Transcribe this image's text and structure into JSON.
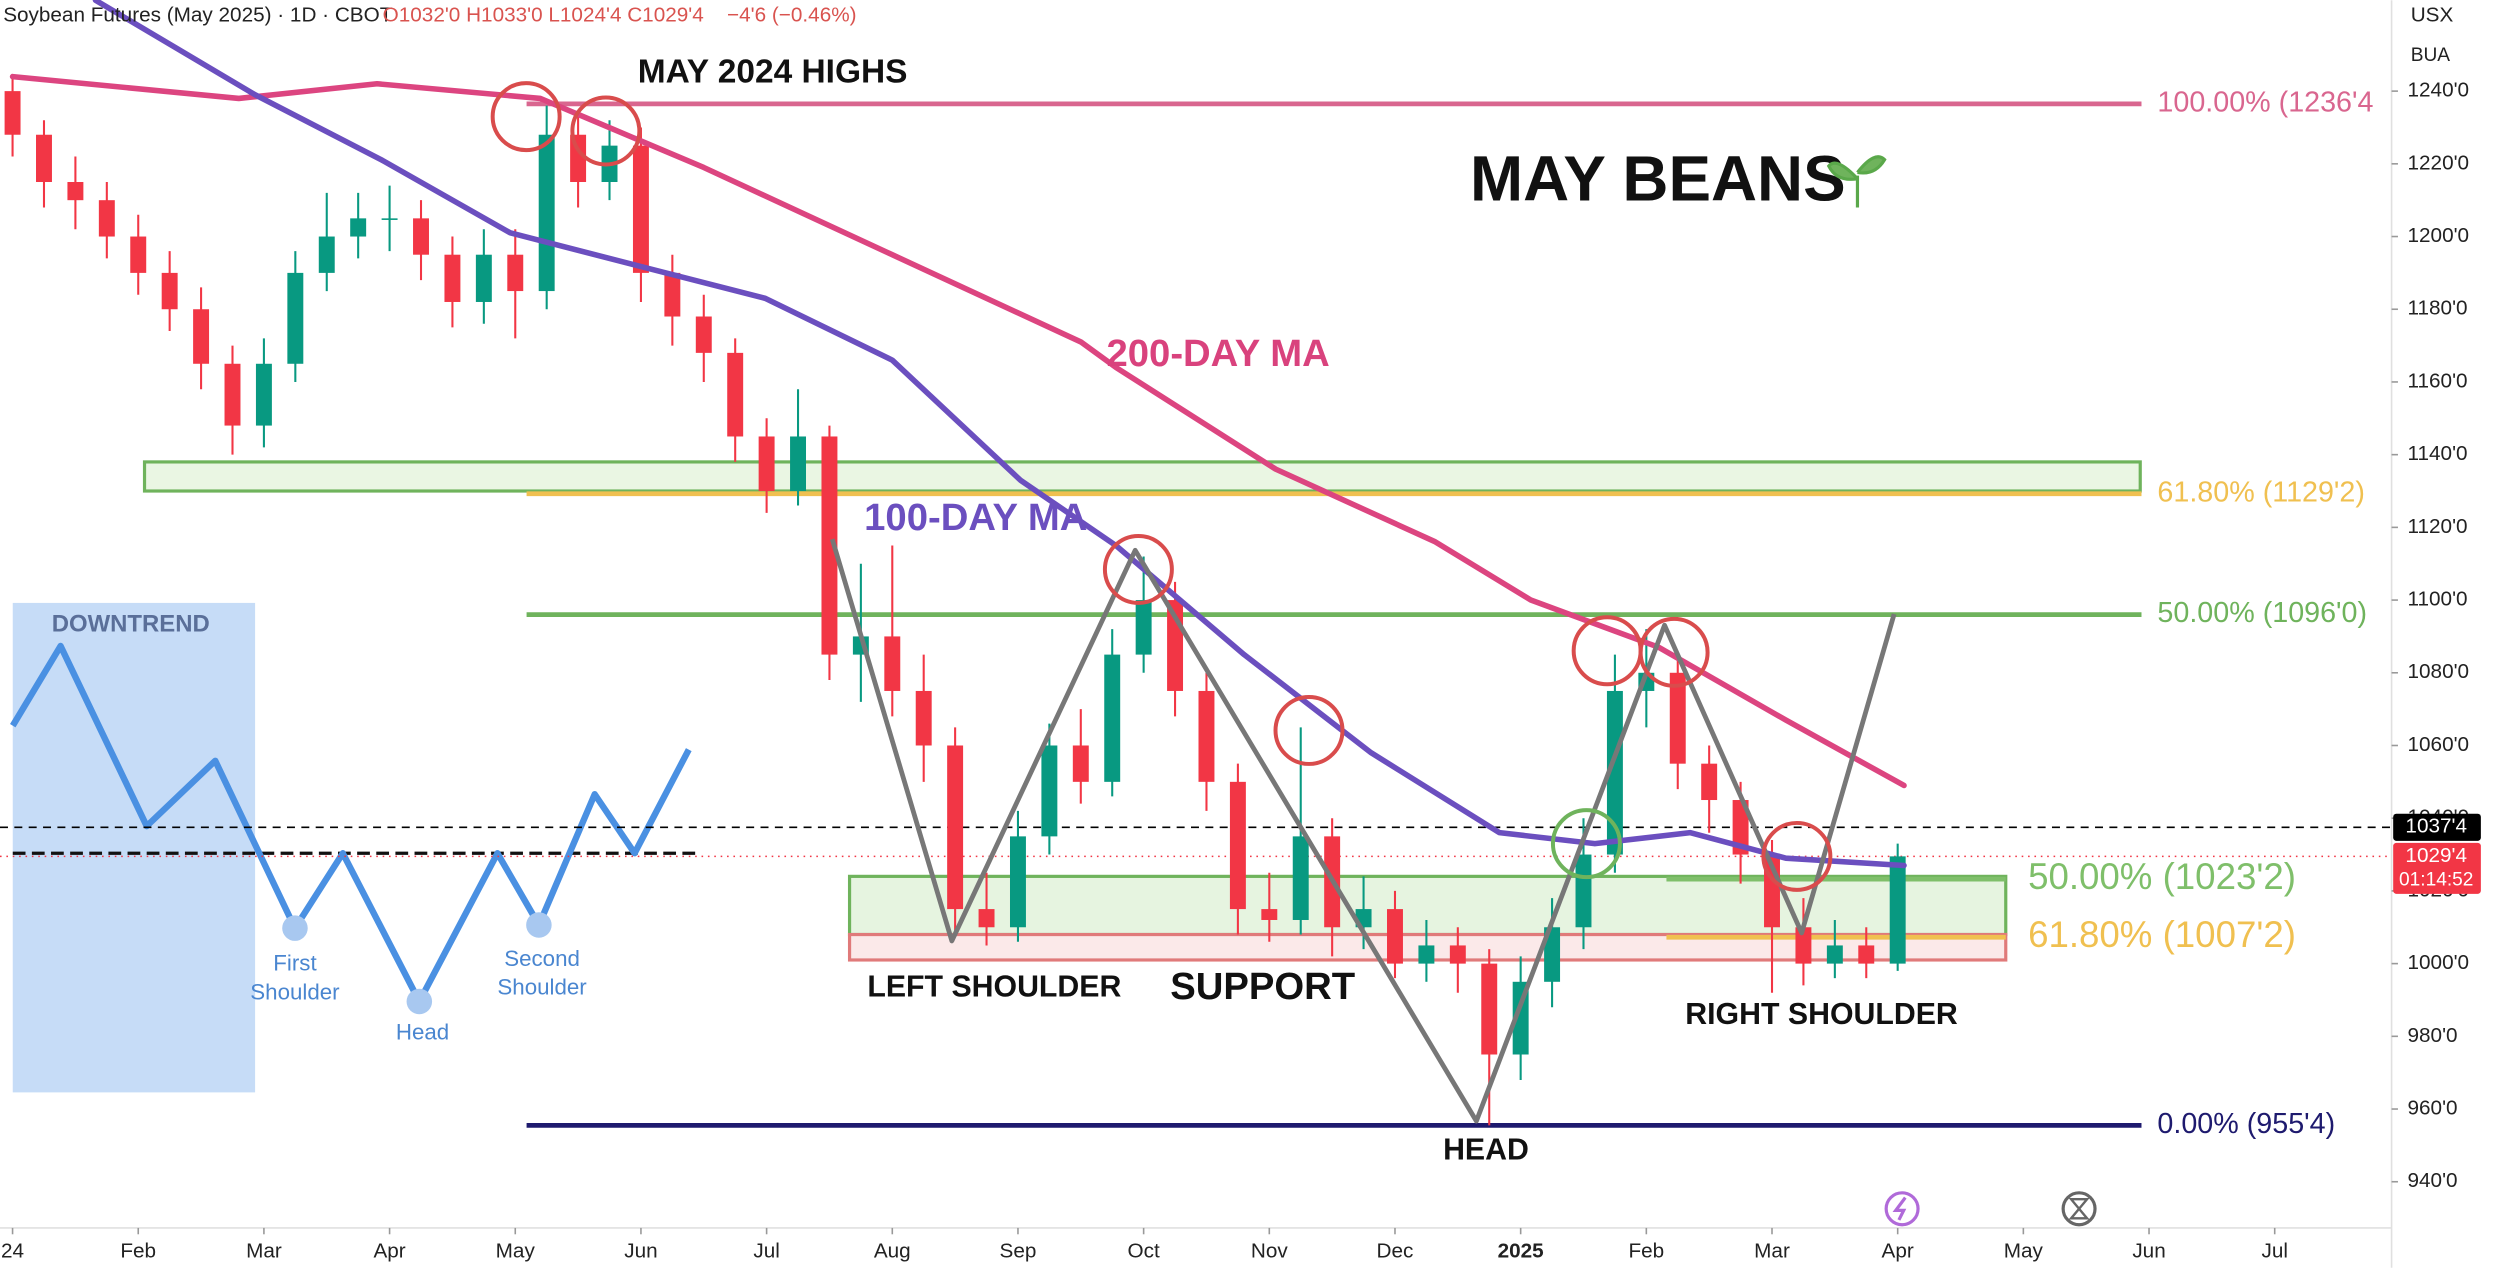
{
  "chart_data": {
    "type": "candlestick",
    "title": "Soybean Futures (May 2025) · 1D · CBOT",
    "ohlc_text": "O1032'0 H1033'0 L1024'4 C1029'4",
    "change_text": "−4'6 (−0.46%)",
    "currency": "USX",
    "exchange_code": "BUA",
    "candles": {
      "up_color": "#089981",
      "down_color": "#f23645",
      "x": [
        0,
        0.25,
        0.5,
        0.75,
        1,
        1.25,
        1.5,
        1.75,
        2,
        2.25,
        2.5,
        2.75,
        3,
        3.25,
        3.5,
        3.75,
        4,
        4.25,
        4.5,
        4.75,
        5,
        5.25,
        5.5,
        5.75,
        6,
        6.25,
        6.5,
        6.75,
        7,
        7.25,
        7.5,
        7.75,
        8,
        8.25,
        8.5,
        8.75,
        9,
        9.25,
        9.5,
        9.75,
        10,
        10.25,
        10.5,
        10.75,
        11,
        11.25,
        11.5,
        11.75,
        12,
        12.25,
        12.5,
        12.75,
        13,
        13.25,
        13.5,
        13.75,
        14,
        14.25,
        14.5,
        14.75,
        15
      ],
      "open": [
        1240,
        1228,
        1215,
        1210,
        1200,
        1190,
        1180,
        1165,
        1148,
        1165,
        1190,
        1200,
        1205,
        1205,
        1195,
        1182,
        1195,
        1185,
        1228,
        1215,
        1225,
        1190,
        1178,
        1168,
        1145,
        1130,
        1145,
        1085,
        1090,
        1075,
        1060,
        1015,
        1010,
        1035,
        1060,
        1050,
        1085,
        1100,
        1075,
        1050,
        1015,
        1012,
        1035,
        1010,
        1015,
        1000,
        1005,
        1000,
        975,
        995,
        1010,
        1030,
        1075,
        1080,
        1055,
        1045,
        1030,
        1010,
        1000,
        1005,
        1000
      ],
      "high": [
        1244,
        1232,
        1222,
        1215,
        1206,
        1196,
        1186,
        1170,
        1172,
        1196,
        1212,
        1212,
        1214,
        1210,
        1200,
        1202,
        1202,
        1236,
        1234,
        1232,
        1230,
        1195,
        1184,
        1172,
        1150,
        1158,
        1148,
        1110,
        1115,
        1085,
        1065,
        1025,
        1042,
        1066,
        1070,
        1092,
        1112,
        1105,
        1080,
        1055,
        1025,
        1065,
        1040,
        1024,
        1020,
        1012,
        1010,
        1004,
        1002,
        1018,
        1040,
        1085,
        1092,
        1085,
        1060,
        1050,
        1034,
        1018,
        1012,
        1010,
        1033
      ],
      "low": [
        1222,
        1208,
        1202,
        1194,
        1184,
        1174,
        1158,
        1140,
        1142,
        1160,
        1185,
        1194,
        1196,
        1188,
        1175,
        1176,
        1172,
        1180,
        1208,
        1210,
        1182,
        1170,
        1160,
        1138,
        1124,
        1126,
        1078,
        1072,
        1068,
        1050,
        1008,
        1005,
        1006,
        1030,
        1044,
        1046,
        1080,
        1068,
        1042,
        1008,
        1006,
        1008,
        1002,
        1004,
        996,
        995,
        992,
        955.5,
        968,
        988,
        1004,
        1025,
        1065,
        1048,
        1036,
        1022,
        992,
        994,
        996,
        996,
        998
      ],
      "close": [
        1228,
        1215,
        1210,
        1200,
        1190,
        1180,
        1165,
        1148,
        1165,
        1190,
        1200,
        1205,
        1205,
        1195,
        1182,
        1195,
        1185,
        1228,
        1215,
        1225,
        1190,
        1178,
        1168,
        1145,
        1130,
        1145,
        1085,
        1090,
        1075,
        1060,
        1015,
        1010,
        1035,
        1060,
        1050,
        1085,
        1100,
        1075,
        1050,
        1015,
        1012,
        1035,
        1010,
        1015,
        1000,
        1005,
        1000,
        975,
        995,
        1010,
        1030,
        1075,
        1080,
        1055,
        1045,
        1030,
        1010,
        1000,
        1005,
        1000,
        1029.5
      ]
    },
    "series": [
      {
        "name": "200-DAY MA",
        "color": "#dc4580",
        "x": [
          0,
          1.8,
          2.9,
          4.2,
          5.5,
          7.0,
          8.5,
          8.78,
          10.05,
          11.32,
          12.08,
          13.1,
          14.11,
          15.05
        ],
        "values": [
          1244,
          1238,
          1242,
          1238,
          1219,
          1195,
          1171,
          1164,
          1136,
          1116,
          1100,
          1087,
          1067,
          1049
        ]
      },
      {
        "name": "100-DAY MA",
        "color": "#6b4fbf",
        "x": [
          0.66,
          1.93,
          2.94,
          3.96,
          4.97,
          5.99,
          7.0,
          8.02,
          8.78,
          9.8,
          10.81,
          11.83,
          12.59,
          13.35,
          14.11,
          15.05
        ],
        "values": [
          1265,
          1239,
          1221,
          1201,
          1192,
          1183,
          1166,
          1133,
          1115,
          1085,
          1058,
          1036,
          1033,
          1036,
          1029,
          1027
        ]
      }
    ],
    "retracements": [
      {
        "value": 1236.5,
        "label": "100.00% (1236'4",
        "color": "#d9668f"
      },
      {
        "value": 1129.25,
        "label": "61.80% (1129'2)",
        "color": "#f0c050"
      },
      {
        "value": 1096,
        "label": "50.00% (1096'0)",
        "color": "#6fb35c"
      },
      {
        "value": 955.5,
        "label": "0.00% (955'4)",
        "color": "#1e1a6e"
      }
    ],
    "retracement_x": [
      4.09,
      16.94
    ],
    "retracements_recent": [
      {
        "value": 1023.25,
        "label": "50.00% (1023'2)",
        "color": "#7fbf6a"
      },
      {
        "value": 1007.25,
        "label": "61.80% (1007'2)",
        "color": "#f0c050"
      }
    ],
    "retracement_recent_x": [
      13.16,
      15.86
    ],
    "zones": [
      {
        "x": [
          1.05,
          16.93
        ],
        "y": [
          1130,
          1138
        ],
        "color": "#6fb35c",
        "fill": "#eaf6e3"
      },
      {
        "x": [
          6.66,
          15.86
        ],
        "y": [
          1008,
          1024
        ],
        "color": "#6fb35c",
        "fill": "#e6f4e0"
      },
      {
        "x": [
          6.66,
          15.86
        ],
        "y": [
          1001,
          1008
        ],
        "color": "#e07a7a",
        "fill": "#fbe9e9"
      }
    ],
    "price_lines": [
      {
        "value": 1037.5,
        "label": "1037'4",
        "color": "#000000"
      },
      {
        "value": 1029.5,
        "label": "1029'4",
        "color": "#f23645"
      }
    ],
    "countdown": "01:14:52",
    "xlim": [
      -0.1,
      18.93
    ],
    "xticks": [
      {
        "value": 0,
        "label": "24"
      },
      {
        "value": 1,
        "label": "Feb"
      },
      {
        "value": 2,
        "label": "Mar"
      },
      {
        "value": 3,
        "label": "Apr"
      },
      {
        "value": 4,
        "label": "May"
      },
      {
        "value": 5,
        "label": "Jun"
      },
      {
        "value": 6,
        "label": "Jul"
      },
      {
        "value": 7,
        "label": "Aug"
      },
      {
        "value": 8,
        "label": "Sep"
      },
      {
        "value": 9,
        "label": "Oct"
      },
      {
        "value": 10,
        "label": "Nov"
      },
      {
        "value": 11,
        "label": "Dec"
      },
      {
        "value": 12,
        "label": "2025"
      },
      {
        "value": 13,
        "label": "Feb"
      },
      {
        "value": 14,
        "label": "Mar"
      },
      {
        "value": 15,
        "label": "Apr"
      },
      {
        "value": 16,
        "label": "May"
      },
      {
        "value": 17,
        "label": "Jun"
      },
      {
        "value": 18,
        "label": "Jul"
      }
    ],
    "ylim": [
      927.3,
      1265
    ],
    "yticks": [
      {
        "value": 940,
        "label": "940'0"
      },
      {
        "value": 960,
        "label": "960'0"
      },
      {
        "value": 980,
        "label": "980'0"
      },
      {
        "value": 1000,
        "label": "1000'0"
      },
      {
        "value": 1020,
        "label": "1020'0"
      },
      {
        "value": 1040,
        "label": "1040'0"
      },
      {
        "value": 1060,
        "label": "1060'0"
      },
      {
        "value": 1080,
        "label": "1080'0"
      },
      {
        "value": 1100,
        "label": "1100'0"
      },
      {
        "value": 1120,
        "label": "1120'0"
      },
      {
        "value": 1140,
        "label": "1140'0"
      },
      {
        "value": 1160,
        "label": "1160'0"
      },
      {
        "value": 1180,
        "label": "1180'0"
      },
      {
        "value": 1200,
        "label": "1200'0"
      },
      {
        "value": 1220,
        "label": "1220'0"
      },
      {
        "value": 1240,
        "label": "1240'0"
      }
    ],
    "grid": false,
    "annotations": {
      "may_highs": "MAY 2024 HIGHS",
      "brand": "MAY BEANS",
      "ma200": "200-DAY MA",
      "ma100": "100-DAY MA",
      "left_shoulder": "LEFT SHOULDER",
      "support": "SUPPORT",
      "right_shoulder": "RIGHT SHOULDER",
      "head": "HEAD"
    },
    "inset": {
      "title": "DOWNTREND",
      "first": [
        "First",
        "Shoulder"
      ],
      "head": "Head",
      "second": [
        "Second",
        "Shoulder"
      ]
    }
  }
}
